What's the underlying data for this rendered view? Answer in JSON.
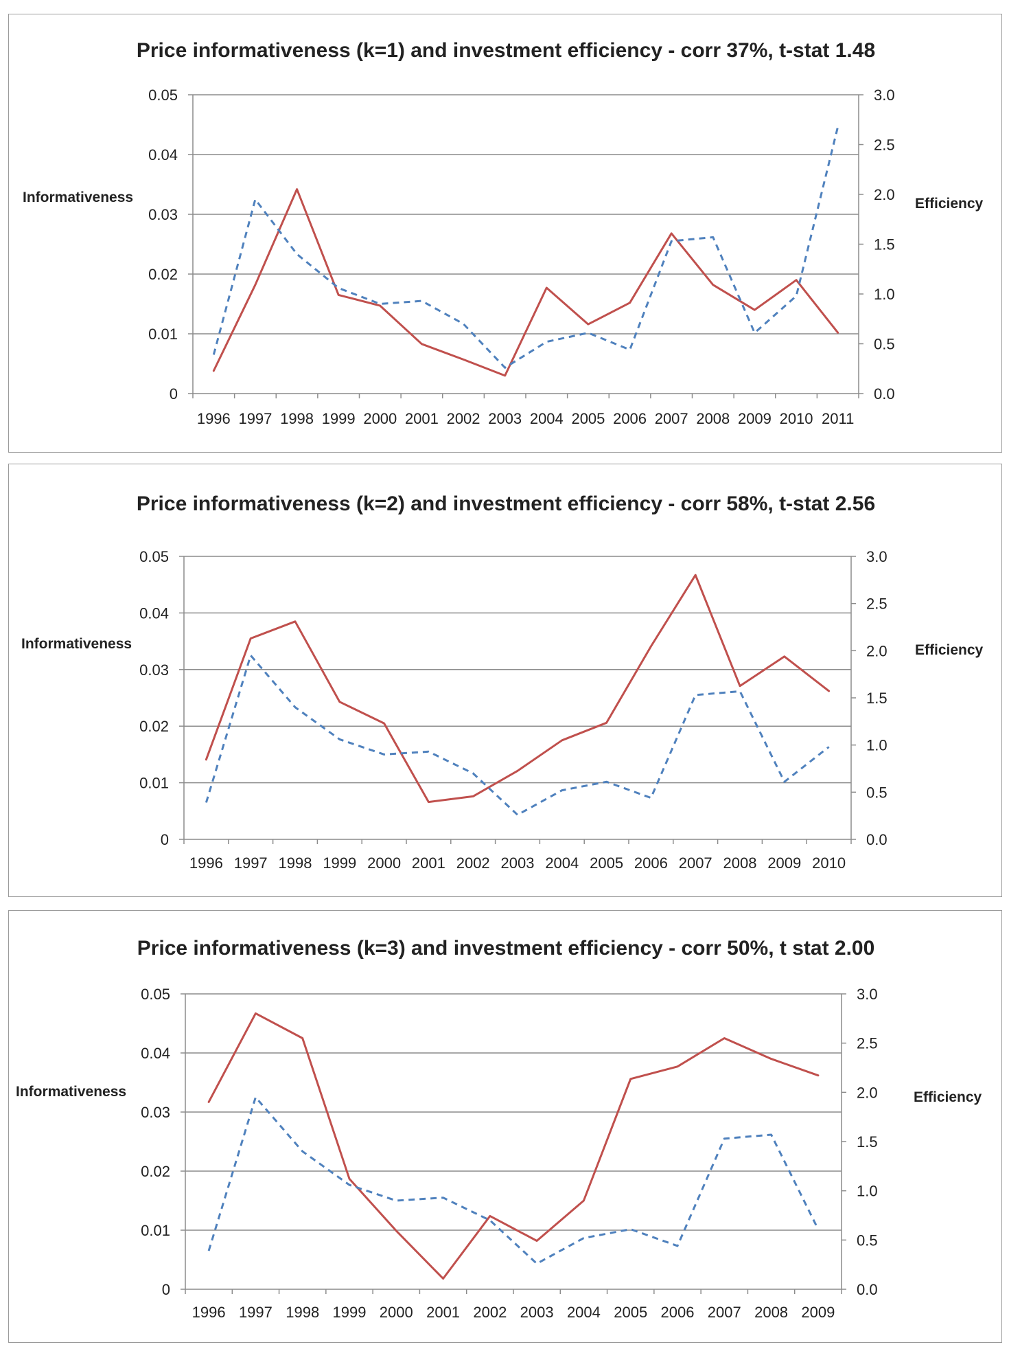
{
  "chart_data": [
    {
      "type": "line",
      "title": "Price informativeness (k=1) and investment efficiency - corr 37%, t-stat 1.48",
      "ylabel": "Informativeness",
      "y2label": "Efficiency",
      "categories": [
        "1996",
        "1997",
        "1998",
        "1999",
        "2000",
        "2001",
        "2002",
        "2003",
        "2004",
        "2005",
        "2006",
        "2007",
        "2008",
        "2009",
        "2010",
        "2011"
      ],
      "ylim": [
        0,
        0.05
      ],
      "yticks": [
        "0",
        "0.01",
        "0.02",
        "0.03",
        "0.04",
        "0.05"
      ],
      "y2lim": [
        0,
        3.0
      ],
      "y2ticks": [
        "0.0",
        "0.5",
        "1.0",
        "1.5",
        "2.0",
        "2.5",
        "3.0"
      ],
      "grid": true,
      "series": [
        {
          "name": "Informativeness",
          "axis": "left",
          "style": "solid",
          "color": "#c0504d",
          "values": [
            0.0038,
            0.0182,
            0.0342,
            0.0165,
            0.0147,
            0.0083,
            0.0057,
            0.003,
            0.0177,
            0.0116,
            0.0152,
            0.0268,
            0.0182,
            0.014,
            0.019,
            0.0102
          ]
        },
        {
          "name": "Efficiency",
          "axis": "right",
          "style": "dashed",
          "color": "#4f81bd",
          "values": [
            0.39,
            1.95,
            1.4,
            1.06,
            0.9,
            0.93,
            0.7,
            0.26,
            0.52,
            0.61,
            0.44,
            1.53,
            1.57,
            0.61,
            0.98,
            2.68
          ]
        }
      ]
    },
    {
      "type": "line",
      "title": "Price informativeness (k=2) and investment efficiency - corr 58%, t-stat 2.56",
      "ylabel": "Informativeness",
      "y2label": "Efficiency",
      "categories": [
        "1996",
        "1997",
        "1998",
        "1999",
        "2000",
        "2001",
        "2002",
        "2003",
        "2004",
        "2005",
        "2006",
        "2007",
        "2008",
        "2009",
        "2010"
      ],
      "ylim": [
        0,
        0.05
      ],
      "yticks": [
        "0",
        "0.01",
        "0.02",
        "0.03",
        "0.04",
        "0.05"
      ],
      "y2lim": [
        0,
        3.0
      ],
      "y2ticks": [
        "0.0",
        "0.5",
        "1.0",
        "1.5",
        "2.0",
        "2.5",
        "3.0"
      ],
      "grid": true,
      "series": [
        {
          "name": "Informativeness",
          "axis": "left",
          "style": "solid",
          "color": "#c0504d",
          "values": [
            0.0141,
            0.0355,
            0.0385,
            0.0243,
            0.0205,
            0.0066,
            0.0076,
            0.0121,
            0.0175,
            0.0206,
            0.0341,
            0.0467,
            0.0271,
            0.0323,
            0.0262
          ]
        },
        {
          "name": "Efficiency",
          "axis": "right",
          "style": "dashed",
          "color": "#4f81bd",
          "values": [
            0.39,
            1.95,
            1.4,
            1.06,
            0.9,
            0.93,
            0.7,
            0.26,
            0.52,
            0.61,
            0.44,
            1.53,
            1.57,
            0.61,
            0.98
          ]
        }
      ]
    },
    {
      "type": "line",
      "title": "Price informativeness (k=3) and investment efficiency - corr 50%, t stat 2.00",
      "ylabel": "Informativeness",
      "y2label": "Efficiency",
      "categories": [
        "1996",
        "1997",
        "1998",
        "1999",
        "2000",
        "2001",
        "2002",
        "2003",
        "2004",
        "2005",
        "2006",
        "2007",
        "2008",
        "2009"
      ],
      "ylim": [
        0,
        0.05
      ],
      "yticks": [
        "0",
        "0.01",
        "0.02",
        "0.03",
        "0.04",
        "0.05"
      ],
      "y2lim": [
        0,
        3.0
      ],
      "y2ticks": [
        "0.0",
        "0.5",
        "1.0",
        "1.5",
        "2.0",
        "2.5",
        "3.0"
      ],
      "grid": true,
      "series": [
        {
          "name": "Informativeness",
          "axis": "left",
          "style": "solid",
          "color": "#c0504d",
          "values": [
            0.0317,
            0.0467,
            0.0425,
            0.0187,
            0.0099,
            0.0018,
            0.0124,
            0.0082,
            0.015,
            0.0356,
            0.0377,
            0.0425,
            0.039,
            0.0362
          ]
        },
        {
          "name": "Efficiency",
          "axis": "right",
          "style": "dashed",
          "color": "#4f81bd",
          "values": [
            0.39,
            1.95,
            1.4,
            1.06,
            0.9,
            0.93,
            0.7,
            0.26,
            0.52,
            0.61,
            0.44,
            1.53,
            1.57,
            0.61
          ]
        }
      ]
    }
  ]
}
